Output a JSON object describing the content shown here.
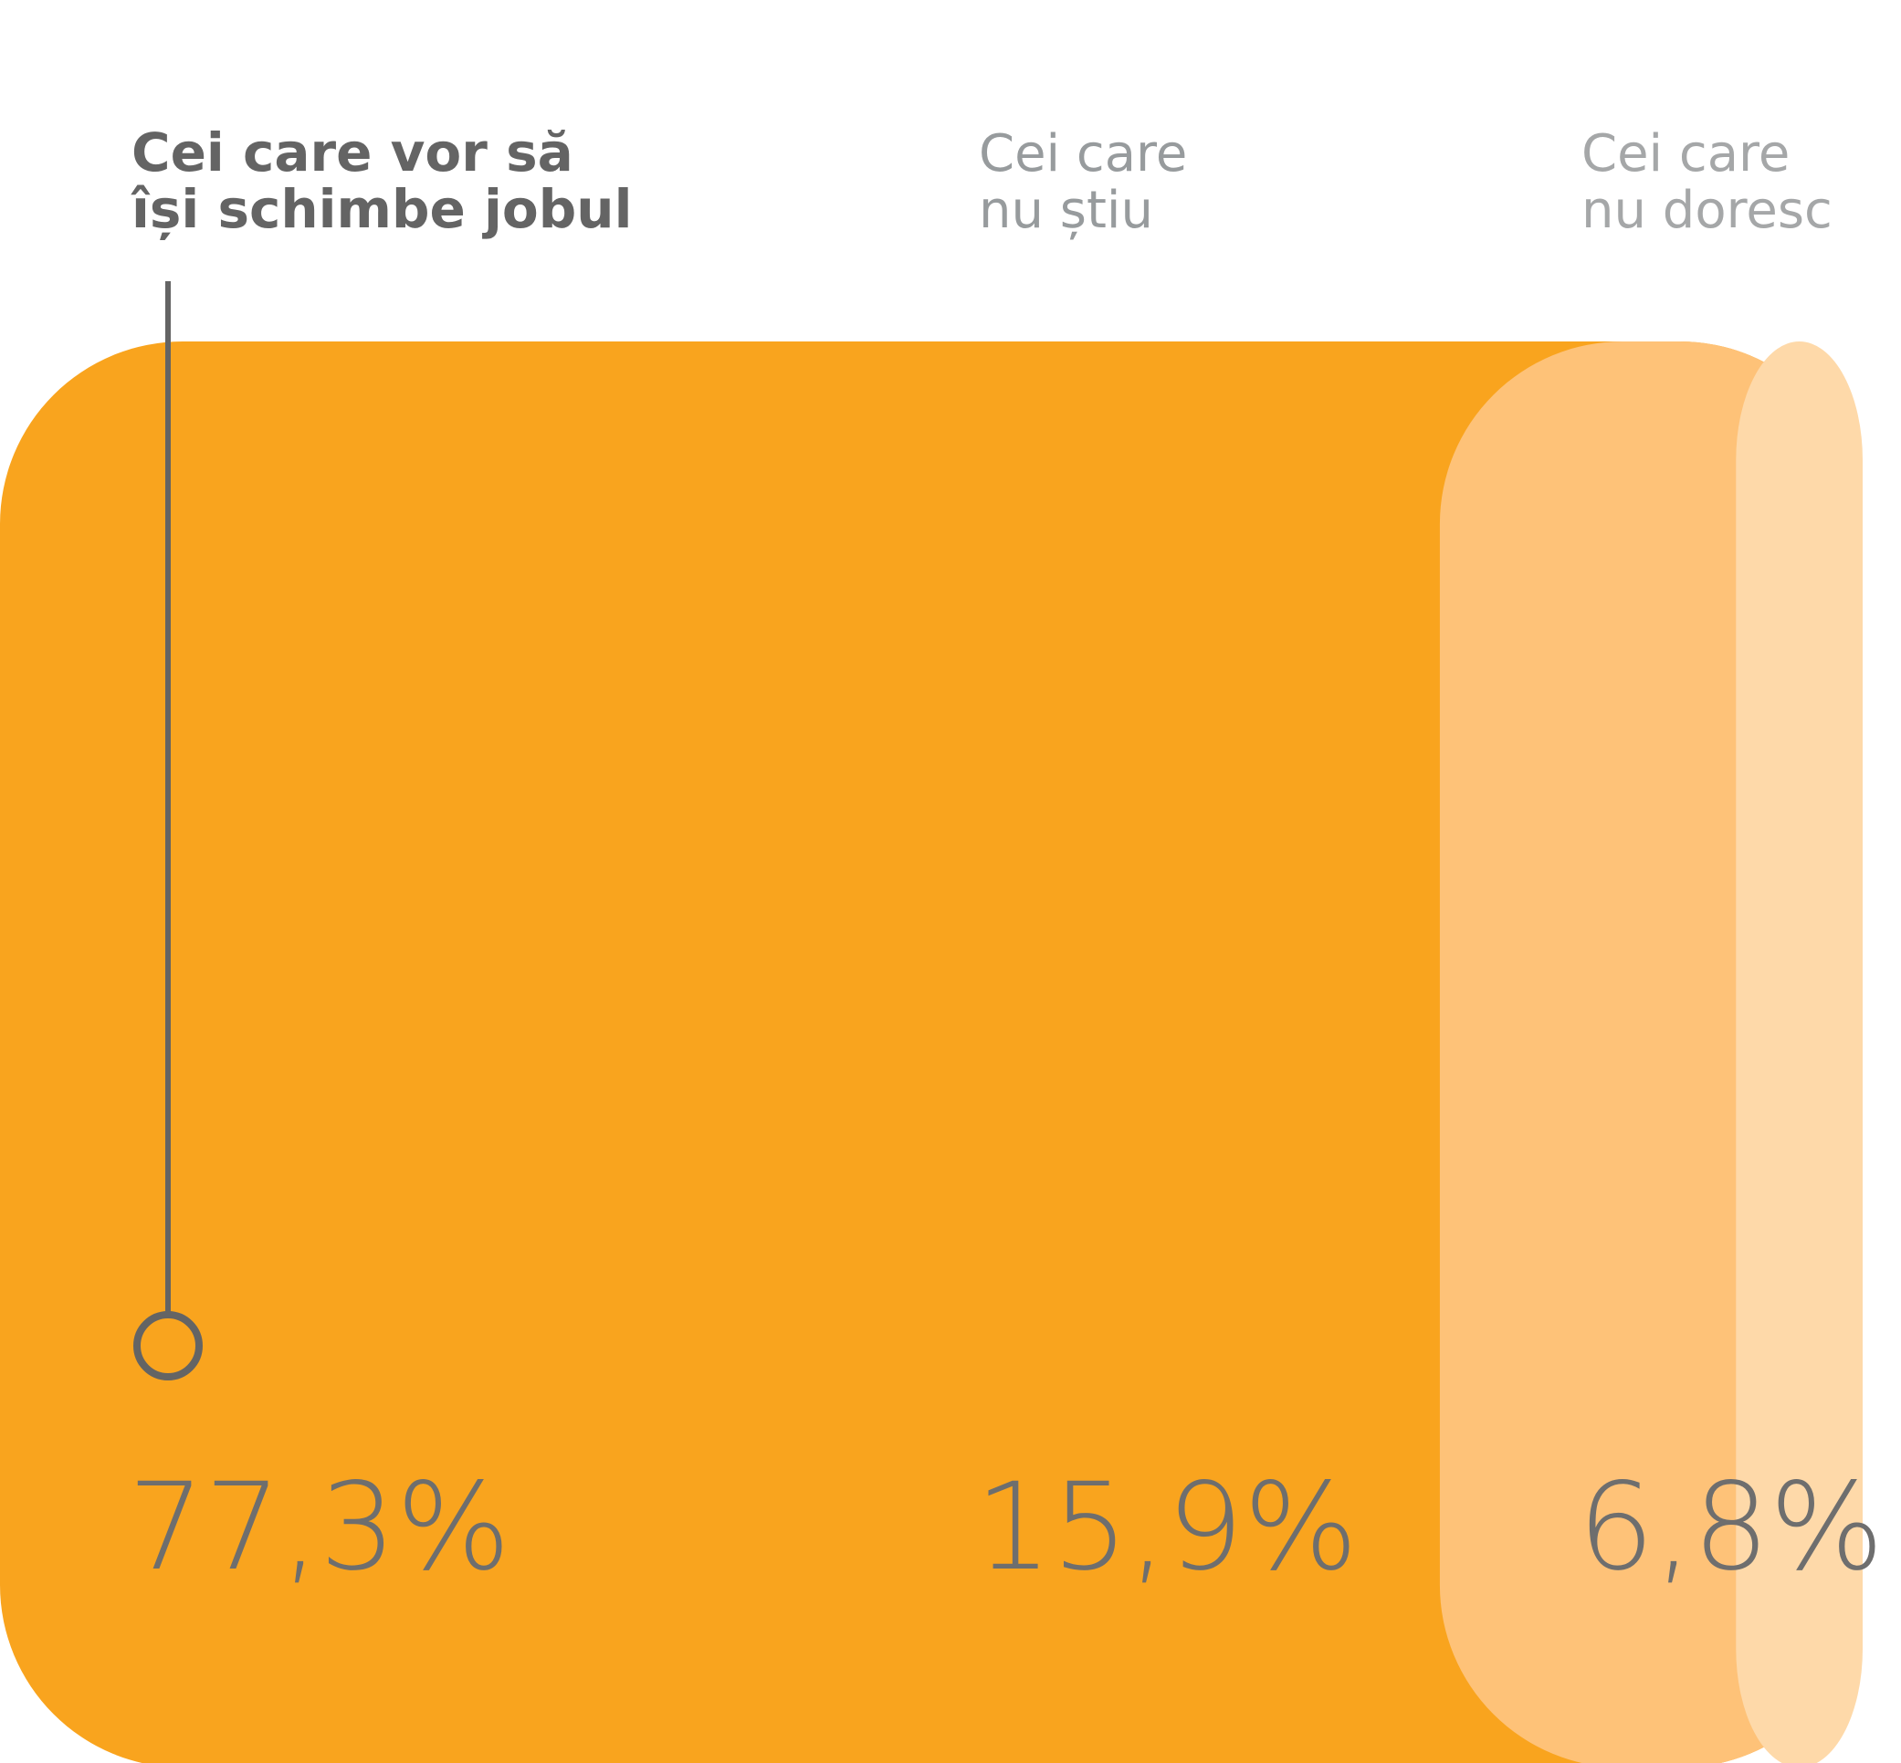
{
  "chart_data": {
    "type": "bar",
    "stacked": true,
    "orientation": "horizontal",
    "title": "",
    "xlabel": "",
    "ylabel": "",
    "unit": "%",
    "categories": [
      "Cei care vor să\nîși schimbe jobul",
      "Cei care\nnu știu",
      "Cei care\nnu doresc"
    ],
    "values": [
      77.3,
      15.9,
      6.8
    ],
    "value_labels": [
      "77,3%",
      "15,9%",
      "6,8%"
    ],
    "colors": [
      "#F9A41E",
      "#FEC278",
      "#FED9A9"
    ],
    "label_colors": [
      "#646464",
      "#979b9d",
      "#a5a7a8"
    ],
    "value_label_color": "#6e6e6e",
    "highlighted_category": 0,
    "xlim": [
      0,
      100
    ],
    "grid": false,
    "legend": "none"
  }
}
